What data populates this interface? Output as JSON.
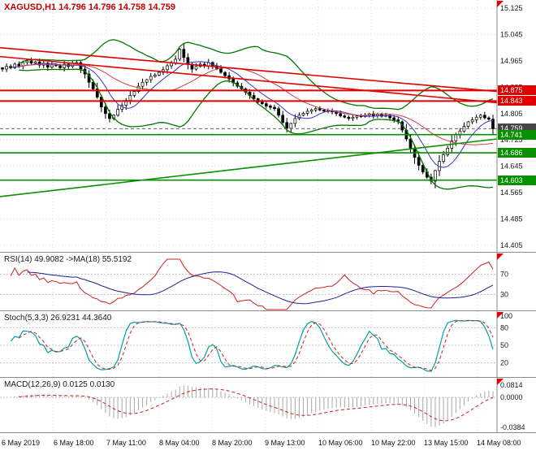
{
  "header": {
    "title": "XAGUSD,H1 14.796 14.796 14.758 14.759",
    "title_color": "#c00000"
  },
  "indicators": {
    "rsi": {
      "label": "RSI(14) 49.9082  ->MA(18) 55.5192"
    },
    "stoch": {
      "label": "Stoch(5,3,3) 26.9231 44.3640"
    },
    "macd": {
      "label": "MACD(12,26,9) 0.0125 0.0130"
    }
  },
  "chart_data": {
    "type": "candlestick",
    "symbol": "XAGUSD",
    "timeframe": "H1",
    "current_price": 14.759,
    "x_labels": [
      "6 May 2019",
      "6 May 18:00",
      "7 May 11:00",
      "8 May 04:00",
      "8 May 20:00",
      "9 May 13:00",
      "10 May 06:00",
      "10 May 22:00",
      "13 May 15:00",
      "14 May 08:00"
    ],
    "price_axis": {
      "labels": [
        15.125,
        15.045,
        14.965,
        14.885,
        14.805,
        14.725,
        14.645,
        14.565,
        14.485,
        14.405
      ]
    },
    "candles_close": [
      14.94,
      14.948,
      14.944,
      14.955,
      14.95,
      14.96,
      14.965,
      14.958,
      14.962,
      14.952,
      14.958,
      14.946,
      14.953,
      14.95,
      14.944,
      14.955,
      14.948,
      14.958,
      14.96,
      14.94,
      14.925,
      14.9,
      14.88,
      14.855,
      14.825,
      14.805,
      14.79,
      14.8,
      14.818,
      14.83,
      14.845,
      14.86,
      14.872,
      14.888,
      14.9,
      14.908,
      14.918,
      14.922,
      14.93,
      14.938,
      14.95,
      14.958,
      14.97,
      15.0,
      14.975,
      14.955,
      14.94,
      14.948,
      14.955,
      14.95,
      14.96,
      14.95,
      14.942,
      14.93,
      14.92,
      14.91,
      14.898,
      14.888,
      14.88,
      14.87,
      14.86,
      14.85,
      14.84,
      14.835,
      14.828,
      14.824,
      14.82,
      14.8,
      14.778,
      14.76,
      14.775,
      14.79,
      14.8,
      14.806,
      14.812,
      14.816,
      14.82,
      14.816,
      14.812,
      14.814,
      14.81,
      14.805,
      14.798,
      14.794,
      14.79,
      14.794,
      14.798,
      14.796,
      14.8,
      14.804,
      14.798,
      14.802,
      14.797,
      14.8,
      14.792,
      14.786,
      14.78,
      14.755,
      14.728,
      14.7,
      14.672,
      14.648,
      14.628,
      14.612,
      14.6,
      14.632,
      14.66,
      14.68,
      14.7,
      14.722,
      14.74,
      14.752,
      14.766,
      14.78,
      14.786,
      14.794,
      14.8,
      14.792,
      14.788,
      14.759
    ],
    "overlays": {
      "bollinger_period": 20,
      "bollinger_dev": 2,
      "ma_fast_period": 8,
      "ma_slow_period": 21,
      "hlines_red": [
        14.875,
        14.843
      ],
      "hlines_green": [
        14.741,
        14.686,
        14.603
      ],
      "trendlines_red": [
        {
          "start": 15.005,
          "end": 14.872
        },
        {
          "start": 14.978,
          "end": 14.838
        }
      ],
      "trendline_green": {
        "start": 14.553,
        "end": 14.728
      }
    },
    "badges": [
      {
        "value": "14.875",
        "price": 14.875,
        "bg": "#e00000"
      },
      {
        "value": "14.843",
        "price": 14.843,
        "bg": "#e00000"
      },
      {
        "value": "14.759",
        "price": 14.759,
        "bg": "#454545"
      },
      {
        "value": "14.741",
        "price": 14.741,
        "bg": "#089000"
      },
      {
        "value": "14.686",
        "price": 14.686,
        "bg": "#089000"
      },
      {
        "value": "14.603",
        "price": 14.603,
        "bg": "#089000"
      }
    ],
    "rsi": {
      "period": 14,
      "ma_period": 18,
      "value": 49.9082,
      "ma_value": 55.5192,
      "levels": [
        70,
        30
      ]
    },
    "stoch": {
      "k_period": 5,
      "slowing": 3,
      "d_period": 3,
      "value_k": 26.9231,
      "value_d": 44.364,
      "levels": [
        80,
        50,
        20
      ],
      "scale": [
        100,
        80,
        50,
        20
      ]
    },
    "macd": {
      "fast": 12,
      "slow": 26,
      "signal": 9,
      "value": 0.0125,
      "value_signal": 0.013,
      "scale_top": "0.0814",
      "scale_zero": "0.0000",
      "scale_bottom": "-0.0384"
    },
    "colors": {
      "grid": "#dcdcdc",
      "bollinger": "#007800",
      "ma_fast": "#3535cc",
      "ma_slow": "#cc4040",
      "trend_red": "#e00000",
      "support_green": "#089000",
      "rsi_main": "#cc2020",
      "rsi_ma": "#202090",
      "stoch_k": "#00a0a0",
      "stoch_d": "#cc2020",
      "macd_hist": "#a8a8a8",
      "macd_signal": "#cc2020",
      "level_line": "#c0c0c0"
    }
  }
}
